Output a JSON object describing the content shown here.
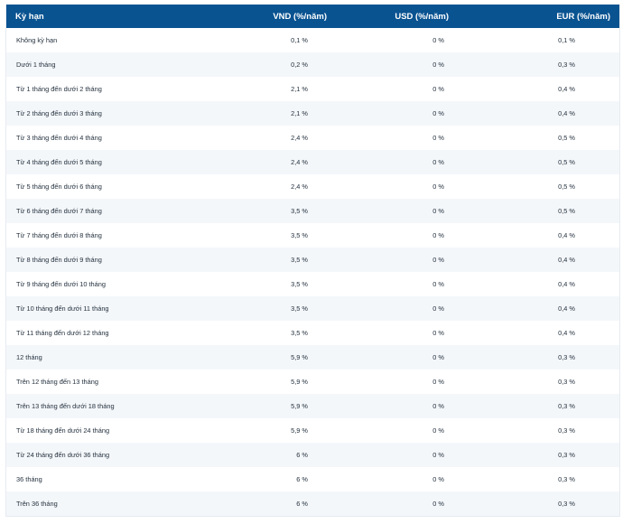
{
  "table": {
    "headers": {
      "term": "Kỳ hạn",
      "vnd": "VND (%/năm)",
      "usd": "USD (%/năm)",
      "eur": "EUR (%/năm)"
    },
    "rows": [
      {
        "term": "Không kỳ hạn",
        "vnd": "0,1 %",
        "usd": "0 %",
        "eur": "0,1 %"
      },
      {
        "term": "Dưới 1 tháng",
        "vnd": "0,2 %",
        "usd": "0 %",
        "eur": "0,3 %"
      },
      {
        "term": "Từ 1 tháng đến dưới 2 tháng",
        "vnd": "2,1 %",
        "usd": "0 %",
        "eur": "0,4 %"
      },
      {
        "term": "Từ 2 tháng đến dưới 3 tháng",
        "vnd": "2,1 %",
        "usd": "0 %",
        "eur": "0,4 %"
      },
      {
        "term": "Từ 3 tháng đến dưới 4 tháng",
        "vnd": "2,4 %",
        "usd": "0 %",
        "eur": "0,5 %"
      },
      {
        "term": "Từ 4 tháng đến dưới 5 tháng",
        "vnd": "2,4 %",
        "usd": "0 %",
        "eur": "0,5 %"
      },
      {
        "term": "Từ 5 tháng đến dưới 6 tháng",
        "vnd": "2,4 %",
        "usd": "0 %",
        "eur": "0,5 %"
      },
      {
        "term": "Từ 6 tháng đến dưới 7 tháng",
        "vnd": "3,5 %",
        "usd": "0 %",
        "eur": "0,5 %"
      },
      {
        "term": "Từ 7 tháng đến dưới 8 tháng",
        "vnd": "3,5 %",
        "usd": "0 %",
        "eur": "0,4 %"
      },
      {
        "term": "Từ 8 tháng đến dưới 9 tháng",
        "vnd": "3,5 %",
        "usd": "0 %",
        "eur": "0,4 %"
      },
      {
        "term": "Từ 9 tháng đến dưới 10 tháng",
        "vnd": "3,5 %",
        "usd": "0 %",
        "eur": "0,4 %"
      },
      {
        "term": "Từ 10 tháng đến dưới 11 tháng",
        "vnd": "3,5 %",
        "usd": "0 %",
        "eur": "0,4 %"
      },
      {
        "term": "Từ 11 tháng đến dưới 12 tháng",
        "vnd": "3,5 %",
        "usd": "0 %",
        "eur": "0,4 %"
      },
      {
        "term": "12 tháng",
        "vnd": "5,9 %",
        "usd": "0 %",
        "eur": "0,3 %"
      },
      {
        "term": "Trên 12 tháng đến 13 tháng",
        "vnd": "5,9 %",
        "usd": "0 %",
        "eur": "0,3 %"
      },
      {
        "term": "Trên 13 tháng đến dưới 18 tháng",
        "vnd": "5,9 %",
        "usd": "0 %",
        "eur": "0,3 %"
      },
      {
        "term": "Từ 18 tháng đến dưới 24 tháng",
        "vnd": "5,9 %",
        "usd": "0 %",
        "eur": "0,3 %"
      },
      {
        "term": "Từ 24 tháng đến dưới 36 tháng",
        "vnd": "6 %",
        "usd": "0 %",
        "eur": "0,3 %"
      },
      {
        "term": "36 tháng",
        "vnd": "6 %",
        "usd": "0 %",
        "eur": "0,3 %"
      },
      {
        "term": "Trên 36 tháng",
        "vnd": "6 %",
        "usd": "0 %",
        "eur": "0,3 %"
      }
    ]
  },
  "colors": {
    "header_background": "#0a5391",
    "header_text": "#ffffff",
    "row_stripe": "#f4f7fa",
    "cell_text": "#25323f"
  }
}
